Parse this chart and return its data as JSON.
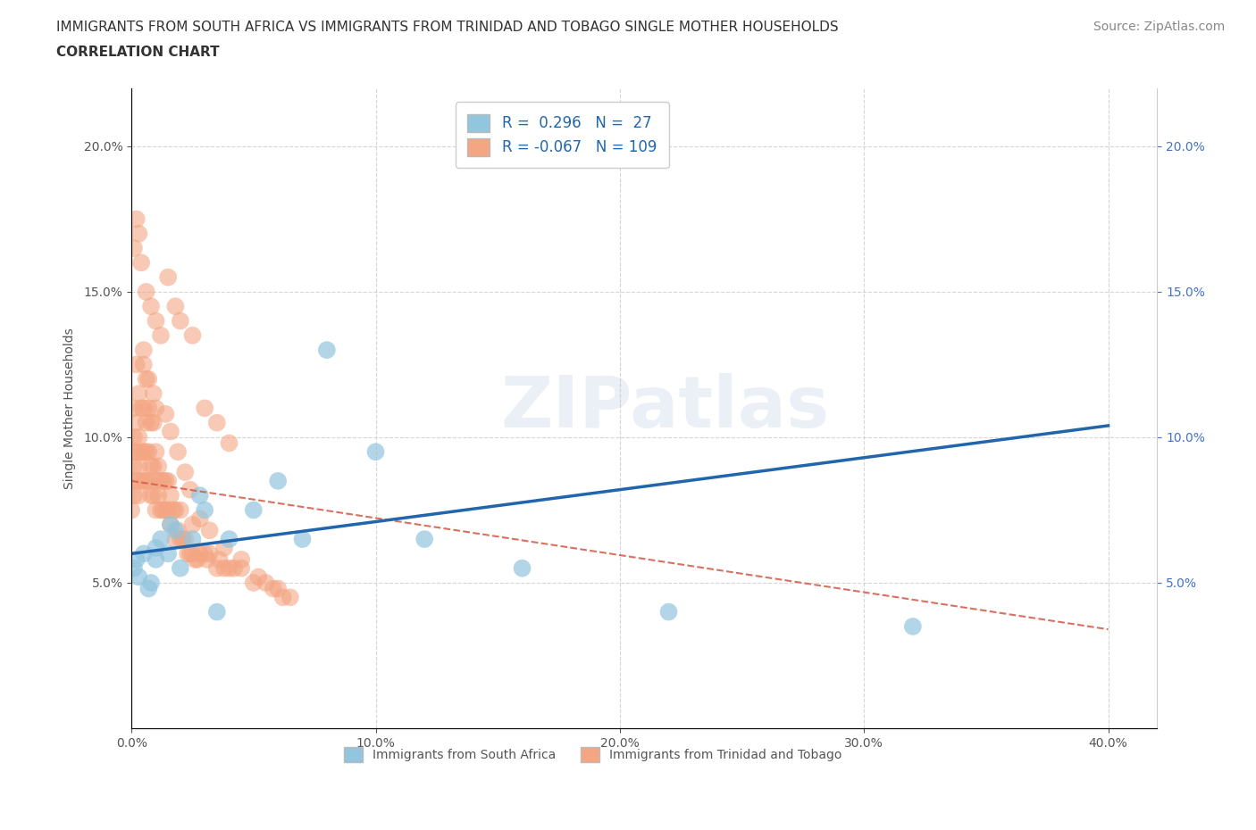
{
  "title_line1": "IMMIGRANTS FROM SOUTH AFRICA VS IMMIGRANTS FROM TRINIDAD AND TOBAGO SINGLE MOTHER HOUSEHOLDS",
  "title_line2": "CORRELATION CHART",
  "source_text": "Source: ZipAtlas.com",
  "ylabel": "Single Mother Households",
  "xlim": [
    0.0,
    0.42
  ],
  "ylim": [
    0.0,
    0.22
  ],
  "xticks": [
    0.0,
    0.1,
    0.2,
    0.3,
    0.4
  ],
  "yticks": [
    0.05,
    0.1,
    0.15,
    0.2
  ],
  "watermark": "ZIPatlas",
  "color_blue": "#92c5de",
  "color_pink": "#f4a582",
  "color_blue_line": "#2166ac",
  "color_pink_line": "#d6604d",
  "grid_color": "#cccccc",
  "blue_line_x0": 0.0,
  "blue_line_y0": 0.06,
  "blue_line_x1": 0.4,
  "blue_line_y1": 0.104,
  "pink_line_x0": 0.0,
  "pink_line_y0": 0.085,
  "pink_line_x1": 0.4,
  "pink_line_y1": 0.034,
  "blue_scatter_x": [
    0.001,
    0.002,
    0.003,
    0.005,
    0.007,
    0.008,
    0.01,
    0.01,
    0.012,
    0.015,
    0.016,
    0.018,
    0.02,
    0.025,
    0.028,
    0.03,
    0.035,
    0.04,
    0.05,
    0.06,
    0.07,
    0.08,
    0.1,
    0.12,
    0.16,
    0.22,
    0.32
  ],
  "blue_scatter_y": [
    0.055,
    0.058,
    0.052,
    0.06,
    0.048,
    0.05,
    0.058,
    0.062,
    0.065,
    0.06,
    0.07,
    0.068,
    0.055,
    0.065,
    0.08,
    0.075,
    0.04,
    0.065,
    0.075,
    0.085,
    0.065,
    0.13,
    0.095,
    0.065,
    0.055,
    0.04,
    0.035
  ],
  "pink_scatter_x": [
    0.0,
    0.0,
    0.0,
    0.001,
    0.001,
    0.001,
    0.001,
    0.002,
    0.002,
    0.002,
    0.002,
    0.003,
    0.003,
    0.003,
    0.003,
    0.004,
    0.004,
    0.004,
    0.005,
    0.005,
    0.005,
    0.005,
    0.006,
    0.006,
    0.006,
    0.006,
    0.007,
    0.007,
    0.007,
    0.008,
    0.008,
    0.008,
    0.009,
    0.009,
    0.009,
    0.01,
    0.01,
    0.01,
    0.01,
    0.011,
    0.011,
    0.012,
    0.012,
    0.013,
    0.013,
    0.014,
    0.014,
    0.015,
    0.015,
    0.016,
    0.016,
    0.017,
    0.018,
    0.018,
    0.019,
    0.02,
    0.02,
    0.021,
    0.022,
    0.023,
    0.024,
    0.025,
    0.025,
    0.026,
    0.027,
    0.028,
    0.03,
    0.031,
    0.032,
    0.035,
    0.036,
    0.038,
    0.04,
    0.042,
    0.045,
    0.05,
    0.055,
    0.058,
    0.06,
    0.062,
    0.065,
    0.01,
    0.012,
    0.008,
    0.006,
    0.004,
    0.003,
    0.002,
    0.001,
    0.015,
    0.018,
    0.02,
    0.025,
    0.03,
    0.035,
    0.04,
    0.005,
    0.007,
    0.009,
    0.014,
    0.016,
    0.019,
    0.022,
    0.024,
    0.028,
    0.032,
    0.038,
    0.045,
    0.052
  ],
  "pink_scatter_y": [
    0.075,
    0.085,
    0.095,
    0.08,
    0.09,
    0.1,
    0.11,
    0.085,
    0.095,
    0.105,
    0.125,
    0.08,
    0.09,
    0.1,
    0.115,
    0.085,
    0.095,
    0.11,
    0.085,
    0.095,
    0.11,
    0.13,
    0.085,
    0.095,
    0.105,
    0.12,
    0.085,
    0.095,
    0.11,
    0.08,
    0.09,
    0.105,
    0.08,
    0.09,
    0.105,
    0.075,
    0.085,
    0.095,
    0.11,
    0.08,
    0.09,
    0.075,
    0.085,
    0.075,
    0.085,
    0.075,
    0.085,
    0.075,
    0.085,
    0.07,
    0.08,
    0.075,
    0.065,
    0.075,
    0.068,
    0.065,
    0.075,
    0.065,
    0.065,
    0.06,
    0.06,
    0.06,
    0.07,
    0.058,
    0.058,
    0.06,
    0.06,
    0.058,
    0.06,
    0.055,
    0.058,
    0.055,
    0.055,
    0.055,
    0.055,
    0.05,
    0.05,
    0.048,
    0.048,
    0.045,
    0.045,
    0.14,
    0.135,
    0.145,
    0.15,
    0.16,
    0.17,
    0.175,
    0.165,
    0.155,
    0.145,
    0.14,
    0.135,
    0.11,
    0.105,
    0.098,
    0.125,
    0.12,
    0.115,
    0.108,
    0.102,
    0.095,
    0.088,
    0.082,
    0.072,
    0.068,
    0.062,
    0.058,
    0.052
  ],
  "title_fontsize": 11,
  "tick_fontsize": 10,
  "legend_fontsize": 12,
  "source_fontsize": 10
}
